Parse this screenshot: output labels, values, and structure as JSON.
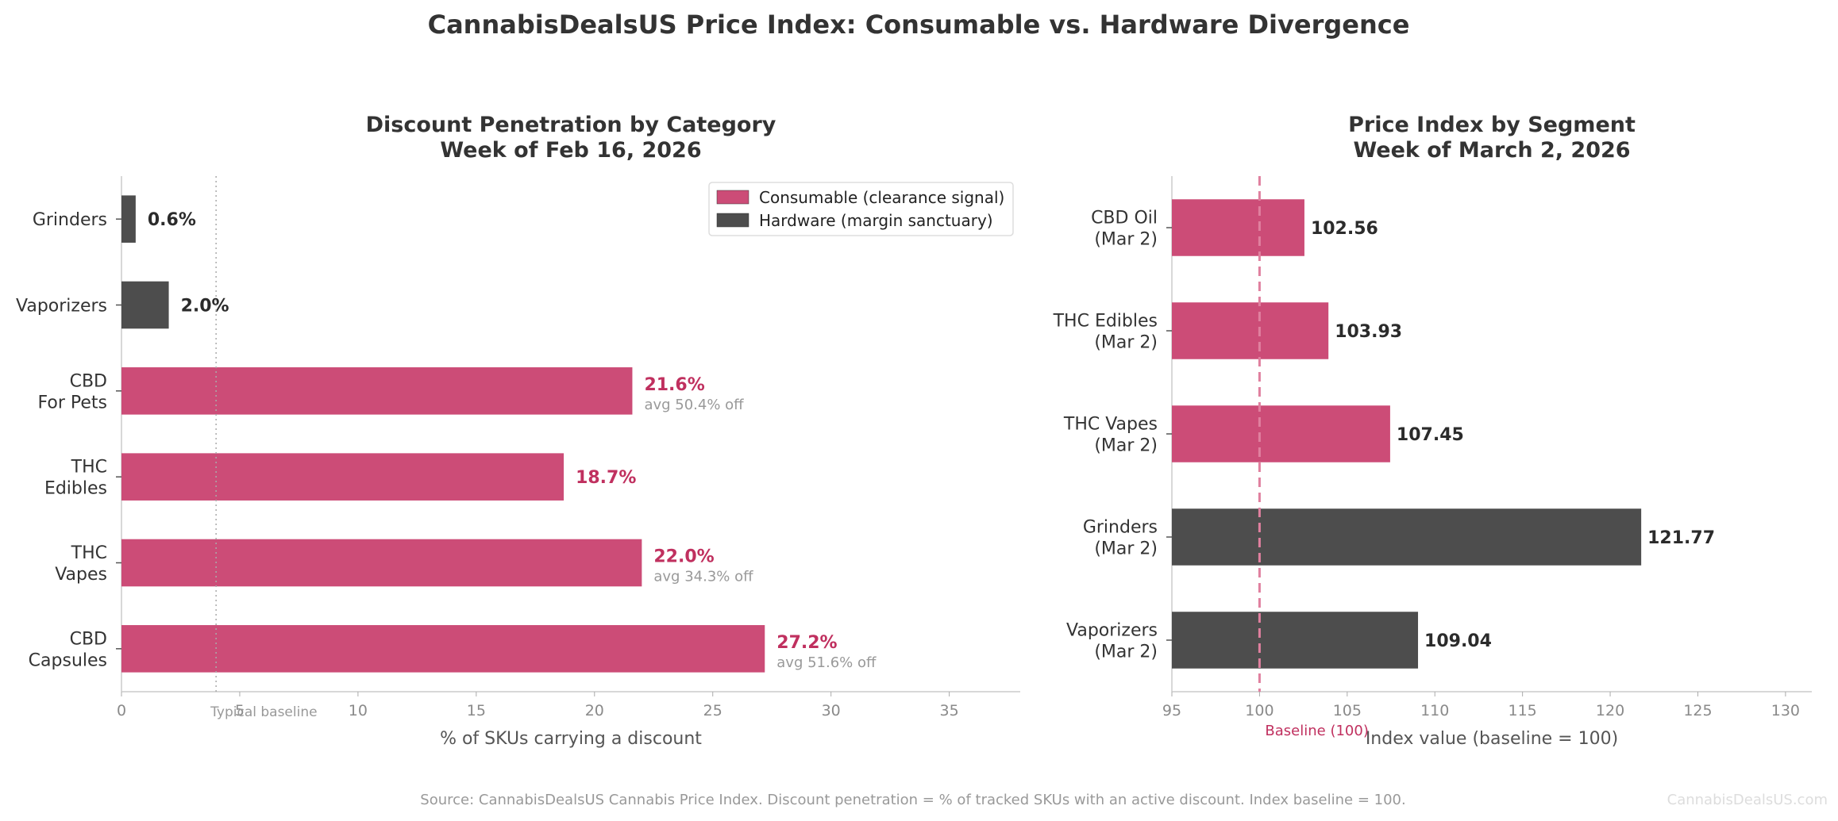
{
  "title": "CannabisDealsUS Price Index: Consumable vs. Hardware Divergence",
  "footer": "Source: CannabisDealsUS Cannabis Price Index. Discount penetration = % of tracked SKUs with an active discount. Index baseline = 100.",
  "watermark": "CannabisDealsUS.com",
  "colors": {
    "consumable": "#cc4c77",
    "hardware": "#4d4d4d",
    "accent_text": "#c0305f"
  },
  "chart_data": [
    {
      "type": "bar",
      "orientation": "horizontal",
      "title_lines": [
        "Discount Penetration by Category",
        "Week of Feb 16, 2026"
      ],
      "xlabel": "% of SKUs carrying a discount",
      "xlim": [
        0,
        38
      ],
      "xticks": [
        0,
        5,
        10,
        15,
        20,
        25,
        30,
        35
      ],
      "reference_line": {
        "value": 4,
        "label": "Typical baseline"
      },
      "legend": {
        "placement": "top-right",
        "entries": [
          {
            "name": "Consumable (clearance signal)",
            "group": "consumable"
          },
          {
            "name": "Hardware (margin sanctuary)",
            "group": "hardware"
          }
        ]
      },
      "bars": [
        {
          "category_lines": [
            "Grinders"
          ],
          "value": 0.6,
          "label": "0.6%",
          "group": "hardware",
          "note": ""
        },
        {
          "category_lines": [
            "Vaporizers"
          ],
          "value": 2.0,
          "label": "2.0%",
          "group": "hardware",
          "note": ""
        },
        {
          "category_lines": [
            "CBD",
            "For Pets"
          ],
          "value": 21.6,
          "label": "21.6%",
          "group": "consumable",
          "note": "avg 50.4% off"
        },
        {
          "category_lines": [
            "THC",
            "Edibles"
          ],
          "value": 18.7,
          "label": "18.7%",
          "group": "consumable",
          "note": ""
        },
        {
          "category_lines": [
            "THC",
            "Vapes"
          ],
          "value": 22.0,
          "label": "22.0%",
          "group": "consumable",
          "note": "avg 34.3% off"
        },
        {
          "category_lines": [
            "CBD",
            "Capsules"
          ],
          "value": 27.2,
          "label": "27.2%",
          "group": "consumable",
          "note": "avg 51.6% off"
        }
      ]
    },
    {
      "type": "bar",
      "orientation": "horizontal",
      "title_lines": [
        "Price Index by Segment",
        "Week of March 2, 2026"
      ],
      "xlabel": "Index value (baseline = 100)",
      "xlim": [
        95,
        131.5
      ],
      "xticks": [
        95,
        100,
        105,
        110,
        115,
        120,
        125,
        130
      ],
      "reference_line": {
        "value": 100,
        "label": "Baseline (100)"
      },
      "bars": [
        {
          "category_lines": [
            "CBD Oil",
            "(Mar 2)"
          ],
          "value": 102.56,
          "label": "102.56",
          "group": "consumable"
        },
        {
          "category_lines": [
            "THC Edibles",
            "(Mar 2)"
          ],
          "value": 103.93,
          "label": "103.93",
          "group": "consumable"
        },
        {
          "category_lines": [
            "THC Vapes",
            "(Mar 2)"
          ],
          "value": 107.45,
          "label": "107.45",
          "group": "consumable"
        },
        {
          "category_lines": [
            "Grinders",
            "(Mar 2)"
          ],
          "value": 121.77,
          "label": "121.77",
          "group": "hardware"
        },
        {
          "category_lines": [
            "Vaporizers",
            "(Mar 2)"
          ],
          "value": 109.04,
          "label": "109.04",
          "group": "hardware"
        }
      ]
    }
  ]
}
